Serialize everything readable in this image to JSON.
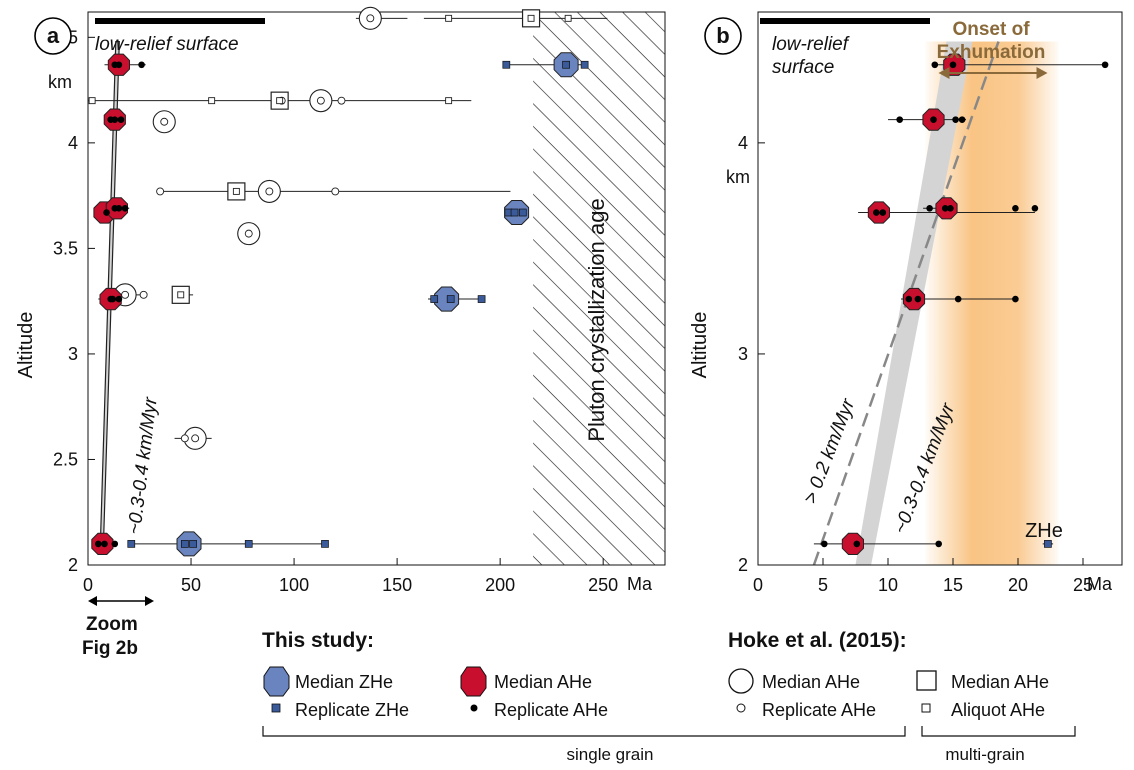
{
  "colors": {
    "zhe_fill": "#6a84bf",
    "zhe_replicate": "#3a5a9a",
    "ahe_fill": "#c8102e",
    "band_grey": "#d4d4d4",
    "onset_orange": "#f7b05a",
    "onset_text": "#8a6a3a",
    "dash_grey": "#888888"
  },
  "chart_data": [
    {
      "id": "a",
      "type": "scatter",
      "panel_label": "a",
      "title": "",
      "xlabel": "",
      "x_unit_label": "Ma",
      "ylabel": "Altitude",
      "y_unit_label": "km",
      "xlim": [
        0,
        280
      ],
      "ylim": [
        2,
        4.62
      ],
      "x_ticks": [
        0,
        50,
        100,
        150,
        200,
        250
      ],
      "y_ticks": [
        2,
        2.5,
        3,
        3.5,
        4,
        4.5
      ],
      "surface_label": "low-relief surface",
      "rate_label": "~0.3-0.4 km/Myr",
      "hatch_label": "Pluton crystallization age",
      "hatch_from": 216,
      "zoom_label_line1": "Zoom",
      "zoom_label_line2": "Fig 2b",
      "rate_band": {
        "x_bottom": [
          6.0,
          7.5
        ],
        "x_top": [
          13.5,
          15.2
        ],
        "y": [
          2.1,
          4.48
        ]
      },
      "series": [
        {
          "name": "Median ZHe",
          "kind": "median_zhe",
          "points": [
            {
              "x": 49,
              "y": 2.1
            },
            {
              "x": 174,
              "y": 3.26
            },
            {
              "x": 208,
              "y": 3.67
            },
            {
              "x": 232,
              "y": 4.37
            }
          ]
        },
        {
          "name": "Replicate ZHe",
          "kind": "rep_zhe",
          "points": [
            {
              "x": 21,
              "y": 2.1
            },
            {
              "x": 47,
              "y": 2.1
            },
            {
              "x": 51,
              "y": 2.1
            },
            {
              "x": 78,
              "y": 2.1
            },
            {
              "x": 115,
              "y": 2.1
            },
            {
              "x": 168,
              "y": 3.26
            },
            {
              "x": 176,
              "y": 3.26
            },
            {
              "x": 191,
              "y": 3.26
            },
            {
              "x": 204,
              "y": 3.67
            },
            {
              "x": 207,
              "y": 3.67
            },
            {
              "x": 211,
              "y": 3.67
            },
            {
              "x": 203,
              "y": 4.37
            },
            {
              "x": 232,
              "y": 4.37
            },
            {
              "x": 241,
              "y": 4.37
            }
          ]
        },
        {
          "name": "Median AHe",
          "kind": "median_ahe",
          "points": [
            {
              "x": 7,
              "y": 2.1
            },
            {
              "x": 11,
              "y": 3.26
            },
            {
              "x": 8,
              "y": 3.67
            },
            {
              "x": 14,
              "y": 3.69
            },
            {
              "x": 13,
              "y": 4.11
            },
            {
              "x": 15,
              "y": 4.37
            }
          ]
        },
        {
          "name": "Replicate AHe",
          "kind": "rep_ahe",
          "points": [
            {
              "x": 5,
              "y": 2.1
            },
            {
              "x": 8,
              "y": 2.1
            },
            {
              "x": 13,
              "y": 2.1
            },
            {
              "x": 11,
              "y": 3.26
            },
            {
              "x": 12,
              "y": 3.26
            },
            {
              "x": 15,
              "y": 3.26
            },
            {
              "x": 9,
              "y": 3.67
            },
            {
              "x": 13,
              "y": 3.69
            },
            {
              "x": 15,
              "y": 3.69
            },
            {
              "x": 18,
              "y": 3.69
            },
            {
              "x": 11,
              "y": 4.11
            },
            {
              "x": 13,
              "y": 4.11
            },
            {
              "x": 16,
              "y": 4.11
            },
            {
              "x": 13,
              "y": 4.37
            },
            {
              "x": 15,
              "y": 4.37
            },
            {
              "x": 26,
              "y": 4.37
            }
          ]
        },
        {
          "name": "Median AHe (Hoke et al. 2015)",
          "kind": "hoke_median_sg",
          "points": [
            {
              "x": 137,
              "y": 4.59
            },
            {
              "x": 113,
              "y": 4.2
            },
            {
              "x": 37,
              "y": 4.1
            },
            {
              "x": 88,
              "y": 3.77
            },
            {
              "x": 78,
              "y": 3.57
            },
            {
              "x": 18,
              "y": 3.28
            },
            {
              "x": 52,
              "y": 2.6
            }
          ]
        },
        {
          "name": "Replicate AHe (Hoke et al. 2015)",
          "kind": "hoke_rep_sg",
          "points": [
            {
              "x": 137,
              "y": 4.59
            },
            {
              "x": 94,
              "y": 4.2
            },
            {
              "x": 113,
              "y": 4.2
            },
            {
              "x": 123,
              "y": 4.2
            },
            {
              "x": 37,
              "y": 4.1
            },
            {
              "x": 35,
              "y": 3.77
            },
            {
              "x": 88,
              "y": 3.77
            },
            {
              "x": 120,
              "y": 3.77
            },
            {
              "x": 78,
              "y": 3.57
            },
            {
              "x": 18,
              "y": 3.28
            },
            {
              "x": 27,
              "y": 3.28
            },
            {
              "x": 47,
              "y": 2.6
            },
            {
              "x": 52,
              "y": 2.6
            }
          ]
        },
        {
          "name": "Median AHe (Hoke et al. 2015, multi-grain)",
          "kind": "hoke_median_mg",
          "points": [
            {
              "x": 215,
              "y": 4.59
            },
            {
              "x": 93,
              "y": 4.2
            },
            {
              "x": 72,
              "y": 3.77
            },
            {
              "x": 45,
              "y": 3.28
            }
          ]
        },
        {
          "name": "Aliquot AHe",
          "kind": "hoke_rep_mg",
          "points": [
            {
              "x": 175,
              "y": 4.59
            },
            {
              "x": 215,
              "y": 4.59
            },
            {
              "x": 233,
              "y": 4.59
            },
            {
              "x": 2,
              "y": 4.2
            },
            {
              "x": 60,
              "y": 4.2
            },
            {
              "x": 93,
              "y": 4.2
            },
            {
              "x": 175,
              "y": 4.2
            },
            {
              "x": 72,
              "y": 3.77
            },
            {
              "x": 45,
              "y": 3.28
            }
          ]
        }
      ],
      "ranges": [
        {
          "y": 4.59,
          "x": [
            130,
            155
          ]
        },
        {
          "y": 4.59,
          "x": [
            163,
            252
          ]
        },
        {
          "y": 4.2,
          "x": [
            0,
            186
          ]
        },
        {
          "y": 3.77,
          "x": [
            35,
            205
          ]
        },
        {
          "y": 3.28,
          "x": [
            15,
            28
          ]
        },
        {
          "y": 3.28,
          "x": [
            42,
            51
          ]
        },
        {
          "y": 2.6,
          "x": [
            42,
            60
          ]
        },
        {
          "y": 4.37,
          "x": [
            8,
            28
          ]
        },
        {
          "y": 4.37,
          "x": [
            203,
            242
          ]
        },
        {
          "y": 4.11,
          "x": [
            8,
            18
          ]
        },
        {
          "y": 3.69,
          "x": [
            4,
            20
          ]
        },
        {
          "y": 3.67,
          "x": [
            204,
            212
          ]
        },
        {
          "y": 3.26,
          "x": [
            5,
            20
          ]
        },
        {
          "y": 3.26,
          "x": [
            165,
            192
          ]
        },
        {
          "y": 2.1,
          "x": [
            2,
            14
          ]
        },
        {
          "y": 2.1,
          "x": [
            20,
            115
          ]
        }
      ]
    },
    {
      "id": "b",
      "type": "scatter",
      "panel_label": "b",
      "title": "",
      "xlabel": "",
      "x_unit_label": "Ma",
      "ylabel": "Altitude",
      "y_unit_label": "km",
      "xlim": [
        0,
        28
      ],
      "ylim": [
        2,
        4.62
      ],
      "x_ticks": [
        0,
        5,
        10,
        15,
        20,
        25
      ],
      "y_ticks": [
        2,
        3,
        4
      ],
      "surface_label_line1": "low-relief",
      "surface_label_line2": "surface",
      "onset_label_line1": "Onset of",
      "onset_label_line2": "Exhumation",
      "onset_range": [
        13.5,
        22.5
      ],
      "zhe_label": "ZHe",
      "rate_label_dash": "> 0.2 km/Myr",
      "rate_label_band": "~0.3-0.4 km/Myr",
      "rate_band": {
        "x_bottom": [
          7.5,
          8.7
        ],
        "x_top": [
          14.5,
          16.5
        ],
        "y": [
          2.0,
          4.48
        ]
      },
      "dash_line": {
        "x": [
          4.3,
          18.5
        ],
        "y": [
          2.0,
          4.48
        ]
      },
      "series": [
        {
          "name": "Median AHe",
          "kind": "median_ahe",
          "points": [
            {
              "x": 7.3,
              "y": 2.1
            },
            {
              "x": 12.0,
              "y": 3.26
            },
            {
              "x": 9.3,
              "y": 3.67
            },
            {
              "x": 14.5,
              "y": 3.69
            },
            {
              "x": 13.5,
              "y": 4.11
            },
            {
              "x": 15.1,
              "y": 4.37
            }
          ]
        },
        {
          "name": "Replicate AHe",
          "kind": "rep_ahe",
          "points": [
            {
              "x": 5.1,
              "y": 2.1
            },
            {
              "x": 7.6,
              "y": 2.1
            },
            {
              "x": 13.9,
              "y": 2.1
            },
            {
              "x": 11.6,
              "y": 3.26
            },
            {
              "x": 12.3,
              "y": 3.26
            },
            {
              "x": 15.4,
              "y": 3.26
            },
            {
              "x": 19.8,
              "y": 3.26
            },
            {
              "x": 9.1,
              "y": 3.67
            },
            {
              "x": 9.6,
              "y": 3.67
            },
            {
              "x": 13.2,
              "y": 3.69
            },
            {
              "x": 14.4,
              "y": 3.69
            },
            {
              "x": 14.8,
              "y": 3.69
            },
            {
              "x": 19.8,
              "y": 3.69
            },
            {
              "x": 21.3,
              "y": 3.69
            },
            {
              "x": 10.9,
              "y": 4.11
            },
            {
              "x": 13.5,
              "y": 4.11
            },
            {
              "x": 15.2,
              "y": 4.11
            },
            {
              "x": 15.7,
              "y": 4.11
            },
            {
              "x": 13.6,
              "y": 4.37
            },
            {
              "x": 15.0,
              "y": 4.37
            },
            {
              "x": 26.7,
              "y": 4.37
            }
          ]
        },
        {
          "name": "Replicate ZHe",
          "kind": "rep_zhe",
          "points": [
            {
              "x": 22.3,
              "y": 2.1
            }
          ]
        }
      ],
      "ranges": [
        {
          "y": 2.1,
          "x": [
            4.3,
            14.0
          ]
        },
        {
          "y": 3.26,
          "x": [
            11.0,
            19.8
          ]
        },
        {
          "y": 3.67,
          "x": [
            7.7,
            21.3
          ]
        },
        {
          "y": 3.69,
          "x": [
            12.7,
            15.0
          ]
        },
        {
          "y": 4.11,
          "x": [
            10.0,
            16.0
          ]
        },
        {
          "y": 4.37,
          "x": [
            13.4,
            26.7
          ]
        },
        {
          "y": 2.1,
          "x": [
            21.9,
            22.7
          ]
        }
      ]
    }
  ],
  "legend": {
    "this_study_title": "This study:",
    "hoke_title": "Hoke et al. (2015):",
    "median_zhe": "Median ZHe",
    "replicate_zhe": "Replicate ZHe",
    "median_ahe": "Median AHe",
    "replicate_ahe": "Replicate AHe",
    "hoke_median_ahe": "Median AHe",
    "hoke_replicate_ahe": "Replicate AHe",
    "hoke_median_ahe_mg": "Median AHe",
    "hoke_aliquot_ahe": "Aliquot AHe",
    "single_grain": "single grain",
    "multi_grain": "multi-grain"
  }
}
